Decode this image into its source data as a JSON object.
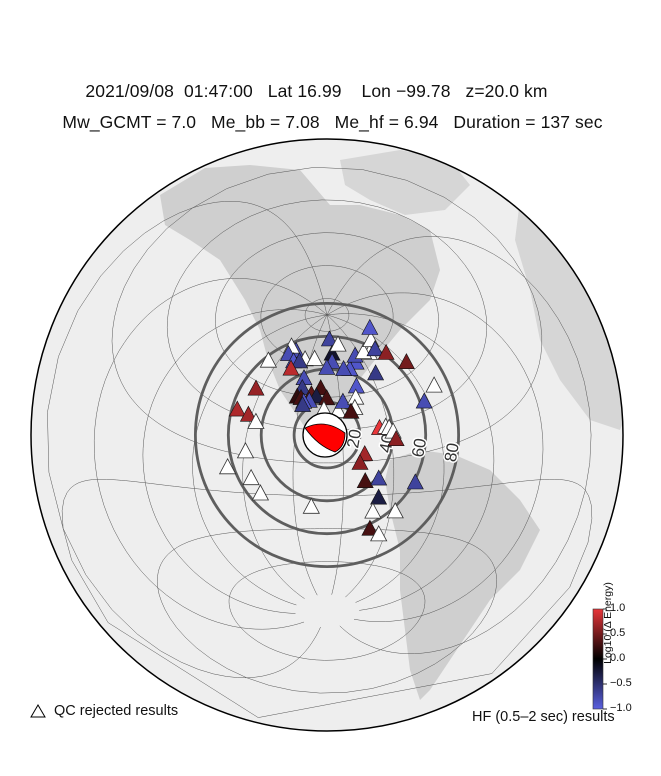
{
  "header": {
    "date": "2021/09/08",
    "time": "01:47:00",
    "lat_label": "Lat 16.99",
    "lon_label": "Lon −99.78",
    "depth_label": "z=20.0 km",
    "mw_label": "Mw_GCMT = 7.0",
    "me_bb_label": "Me_bb = 7.08",
    "me_hf_label": "Me_hf = 6.94",
    "duration_label": "Duration = 137 sec"
  },
  "map": {
    "distance_rings": [
      {
        "deg": 20,
        "label": "20"
      },
      {
        "deg": 40,
        "label": "40"
      },
      {
        "deg": 60,
        "label": "60"
      },
      {
        "deg": 80,
        "label": "80"
      }
    ],
    "beachball_color": "#ff0000",
    "stations": [
      {
        "lat": 74.7,
        "lon": -95.2,
        "v": -0.7
      },
      {
        "lat": 64.0,
        "lon": -139.7,
        "v": -0.8
      },
      {
        "lat": 64.9,
        "lon": -148.0,
        "v": null
      },
      {
        "lat": 60.5,
        "lon": -145.3,
        "v": -0.8
      },
      {
        "lat": 58.0,
        "lon": -136.0,
        "v": -0.9
      },
      {
        "lat": 61.0,
        "lon": -125.0,
        "v": null
      },
      {
        "lat": 59.0,
        "lon": -130.0,
        "v": -0.6
      },
      {
        "lat": 62.4,
        "lon": -114.5,
        "v": null
      },
      {
        "lat": 66.0,
        "lon": -93.0,
        "v": -0.2
      },
      {
        "lat": 71.0,
        "lon": -82.0,
        "v": null
      },
      {
        "lat": 61.0,
        "lon": -94.0,
        "v": -0.8
      },
      {
        "lat": 58.0,
        "lon": -68.5,
        "v": -0.9
      },
      {
        "lat": 57.5,
        "lon": -100.0,
        "v": -0.8
      },
      {
        "lat": 55.3,
        "lon": -77.0,
        "v": -0.9
      },
      {
        "lat": 56.0,
        "lon": -83.0,
        "v": -0.8
      },
      {
        "lat": 62.0,
        "lon": -66.0,
        "v": -0.8
      },
      {
        "lat": 60.0,
        "lon": -50.0,
        "v": null
      },
      {
        "lat": 62.0,
        "lon": -55.0,
        "v": null
      },
      {
        "lat": 65.0,
        "lon": -37.0,
        "v": null
      },
      {
        "lat": 60.0,
        "lon": -42.0,
        "v": -0.7
      },
      {
        "lat": 69.0,
        "lon": -22.0,
        "v": -0.9
      },
      {
        "lat": 52.0,
        "lon": -158.0,
        "v": null
      },
      {
        "lat": 53.5,
        "lon": -135.0,
        "v": 0.8
      },
      {
        "lat": 50.0,
        "lon": -120.5,
        "v": -0.8
      },
      {
        "lat": 44.0,
        "lon": -120.0,
        "v": -0.6
      },
      {
        "lat": 38.5,
        "lon": -122.5,
        "v": 0.2
      },
      {
        "lat": 38.0,
        "lon": -119.5,
        "v": 0.3
      },
      {
        "lat": 41.0,
        "lon": -112.0,
        "v": 0.4
      },
      {
        "lat": 45.0,
        "lon": -105.0,
        "v": 0.3
      },
      {
        "lat": 40.0,
        "lon": -108.0,
        "v": -0.3
      },
      {
        "lat": 37.0,
        "lon": -113.0,
        "v": -0.8
      },
      {
        "lat": 36.0,
        "lon": -117.0,
        "v": -0.9
      },
      {
        "lat": 34.0,
        "lon": -117.5,
        "v": -0.6
      },
      {
        "lat": 39.0,
        "lon": -100.0,
        "v": 0.3
      },
      {
        "lat": 32.0,
        "lon": -102.0,
        "v": null
      },
      {
        "lat": 31.0,
        "lon": -92.0,
        "v": null
      },
      {
        "lat": 36.5,
        "lon": -88.0,
        "v": -0.8
      },
      {
        "lat": 44.5,
        "lon": -75.5,
        "v": -0.9
      },
      {
        "lat": 38.0,
        "lon": -78.0,
        "v": null
      },
      {
        "lat": 32.0,
        "lon": -80.0,
        "v": null
      },
      {
        "lat": 30.0,
        "lon": -83.0,
        "v": 0.3
      },
      {
        "lat": 48.5,
        "lon": -56.0,
        "v": -0.6
      },
      {
        "lat": 55.0,
        "lon": -36.0,
        "v": 0.6
      },
      {
        "lat": 45.0,
        "lon": -28.0,
        "v": 0.5
      },
      {
        "lat": 28.0,
        "lon": -22.0,
        "v": null
      },
      {
        "lat": 24.0,
        "lon": -33.0,
        "v": -0.8
      },
      {
        "lat": 36.0,
        "lon": -154.0,
        "v": 0.65
      },
      {
        "lat": 22.0,
        "lon": -160.0,
        "v": 0.75
      },
      {
        "lat": 21.5,
        "lon": -152.0,
        "v": 0.7
      },
      {
        "lat": 19.0,
        "lon": -146.0,
        "v": null
      },
      {
        "lat": 18.0,
        "lon": -66.0,
        "v": 1.0
      },
      {
        "lat": 18.0,
        "lon": -62.0,
        "v": null
      },
      {
        "lat": 17.0,
        "lon": -60.0,
        "v": null
      },
      {
        "lat": 14.5,
        "lon": -58.0,
        "v": null
      },
      {
        "lat": 10.0,
        "lon": -57.0,
        "v": 0.6
      },
      {
        "lat": 2.0,
        "lon": -149.0,
        "v": null
      },
      {
        "lat": -8.0,
        "lon": -159.0,
        "v": null
      },
      {
        "lat": -12.0,
        "lon": -145.0,
        "v": null
      },
      {
        "lat": -20.0,
        "lon": -140.0,
        "v": null
      },
      {
        "lat": -27.0,
        "lon": -109.5,
        "v": null
      },
      {
        "lat": 4.0,
        "lon": -77.0,
        "v": 0.7
      },
      {
        "lat": -1.0,
        "lon": -80.0,
        "v": 0.6
      },
      {
        "lat": -12.0,
        "lon": -77.0,
        "v": 0.3
      },
      {
        "lat": -11.0,
        "lon": -69.0,
        "v": -0.7
      },
      {
        "lat": -15.0,
        "lon": -47.0,
        "v": -0.7
      },
      {
        "lat": -22.0,
        "lon": -68.5,
        "v": -0.3
      },
      {
        "lat": -30.0,
        "lon": -71.0,
        "v": null
      },
      {
        "lat": -30.0,
        "lon": -57.0,
        "v": null
      },
      {
        "lat": -40.0,
        "lon": -71.0,
        "v": 0.3
      },
      {
        "lat": -43.0,
        "lon": -64.0,
        "v": null
      }
    ]
  },
  "legend": {
    "qc_label": "QC rejected results",
    "hf_label": "HF (0.5–2 sec) results",
    "colorbar_title": "Log10 (Δ Energy)",
    "colorbar_ticks": [
      "1.0",
      "0.5",
      "0.0",
      "−0.5",
      "−1.0"
    ]
  }
}
